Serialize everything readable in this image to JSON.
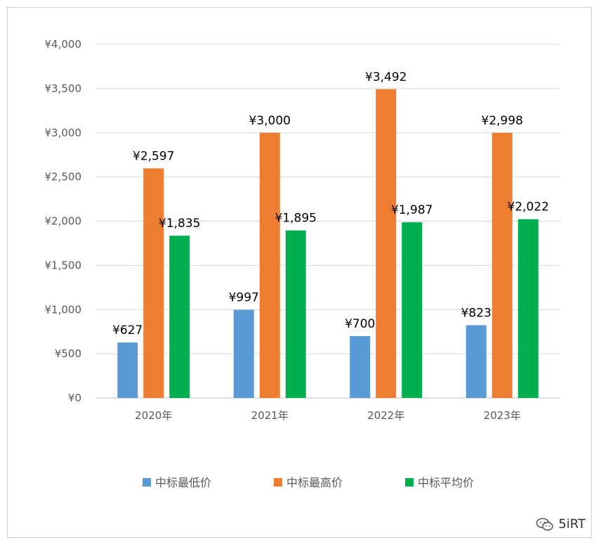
{
  "chart_data": {
    "type": "bar",
    "categories": [
      "2020年",
      "2021年",
      "2022年",
      "2023年"
    ],
    "series": [
      {
        "name": "中标最低价",
        "color": "#5B9BD5",
        "values": [
          627,
          997,
          700,
          823
        ],
        "labels": [
          "¥627",
          "¥997",
          "¥700",
          "¥823"
        ]
      },
      {
        "name": "中标最高价",
        "color": "#ED7D31",
        "values": [
          2597,
          3000,
          3492,
          2998
        ],
        "labels": [
          "¥2,597",
          "¥3,000",
          "¥3,492",
          "¥2,998"
        ]
      },
      {
        "name": "中标平均价",
        "color": "#00B050",
        "values": [
          1835,
          1895,
          1987,
          2022
        ],
        "labels": [
          "¥1,835",
          "¥1,895",
          "¥1,987",
          "¥2,022"
        ]
      }
    ],
    "ylim": [
      0,
      4000
    ],
    "yticks": [
      {
        "value": 0,
        "label": "¥0"
      },
      {
        "value": 500,
        "label": "¥500"
      },
      {
        "value": 1000,
        "label": "¥1,000"
      },
      {
        "value": 1500,
        "label": "¥1,500"
      },
      {
        "value": 2000,
        "label": "¥2,000"
      },
      {
        "value": 2500,
        "label": "¥2,500"
      },
      {
        "value": 3000,
        "label": "¥3,000"
      },
      {
        "value": 3500,
        "label": "¥3,500"
      },
      {
        "value": 4000,
        "label": "¥4,000"
      }
    ],
    "grid": true,
    "legend_position": "bottom"
  },
  "watermark": {
    "text": "5iRT",
    "icon": "wechat-icon"
  }
}
